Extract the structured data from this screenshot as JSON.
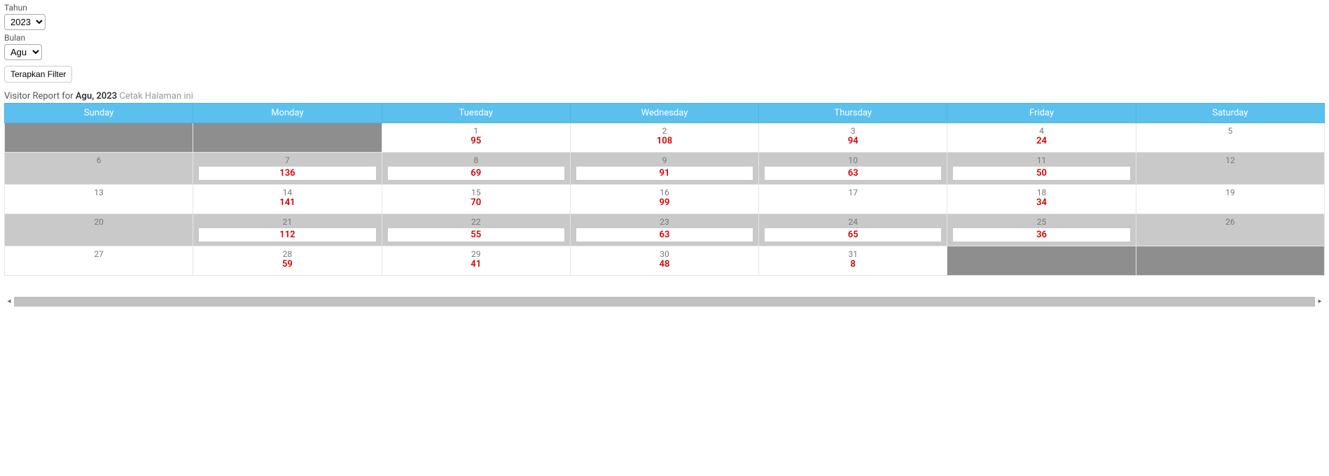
{
  "filters": {
    "year_label": "Tahun",
    "year_value": "2023",
    "month_label": "Bulan",
    "month_value": "Agu",
    "apply_label": "Terapkan Filter"
  },
  "report": {
    "title_prefix": "Visitor Report for ",
    "title_bold": "Agu, 2023",
    "print_label": "Cetak Halaman ini"
  },
  "calendar": {
    "header_bg": "#5bc0ee",
    "header_text": "#ffffff",
    "value_color": "#d40000",
    "row_odd_bg": "#ffffff",
    "row_even_bg": "#c9c9c9",
    "pad_bg": "#8e8e8e",
    "days": [
      "Sunday",
      "Monday",
      "Tuesday",
      "Wednesday",
      "Thursday",
      "Friday",
      "Saturday"
    ],
    "weeks": [
      {
        "shade": "odd",
        "cells": [
          {
            "pad": true
          },
          {
            "pad": true
          },
          {
            "day": 1,
            "value": 95
          },
          {
            "day": 2,
            "value": 108
          },
          {
            "day": 3,
            "value": 94
          },
          {
            "day": 4,
            "value": 24
          },
          {
            "day": 5,
            "value": null
          }
        ]
      },
      {
        "shade": "even",
        "cells": [
          {
            "day": 6,
            "value": null
          },
          {
            "day": 7,
            "value": 136,
            "boxed": true
          },
          {
            "day": 8,
            "value": 69,
            "boxed": true
          },
          {
            "day": 9,
            "value": 91,
            "boxed": true
          },
          {
            "day": 10,
            "value": 63,
            "boxed": true
          },
          {
            "day": 11,
            "value": 50,
            "boxed": true
          },
          {
            "day": 12,
            "value": null
          }
        ]
      },
      {
        "shade": "odd",
        "cells": [
          {
            "day": 13,
            "value": null
          },
          {
            "day": 14,
            "value": 141
          },
          {
            "day": 15,
            "value": 70
          },
          {
            "day": 16,
            "value": 99
          },
          {
            "day": 17,
            "value": null
          },
          {
            "day": 18,
            "value": 34
          },
          {
            "day": 19,
            "value": null
          }
        ]
      },
      {
        "shade": "even",
        "cells": [
          {
            "day": 20,
            "value": null
          },
          {
            "day": 21,
            "value": 112,
            "boxed": true
          },
          {
            "day": 22,
            "value": 55,
            "boxed": true
          },
          {
            "day": 23,
            "value": 63,
            "boxed": true
          },
          {
            "day": 24,
            "value": 65,
            "boxed": true
          },
          {
            "day": 25,
            "value": 36,
            "boxed": true
          },
          {
            "day": 26,
            "value": null
          }
        ]
      },
      {
        "shade": "odd",
        "cells": [
          {
            "day": 27,
            "value": null
          },
          {
            "day": 28,
            "value": 59
          },
          {
            "day": 29,
            "value": 41
          },
          {
            "day": 30,
            "value": 48
          },
          {
            "day": 31,
            "value": 8
          },
          {
            "pad": true
          },
          {
            "pad": true
          }
        ]
      }
    ]
  }
}
